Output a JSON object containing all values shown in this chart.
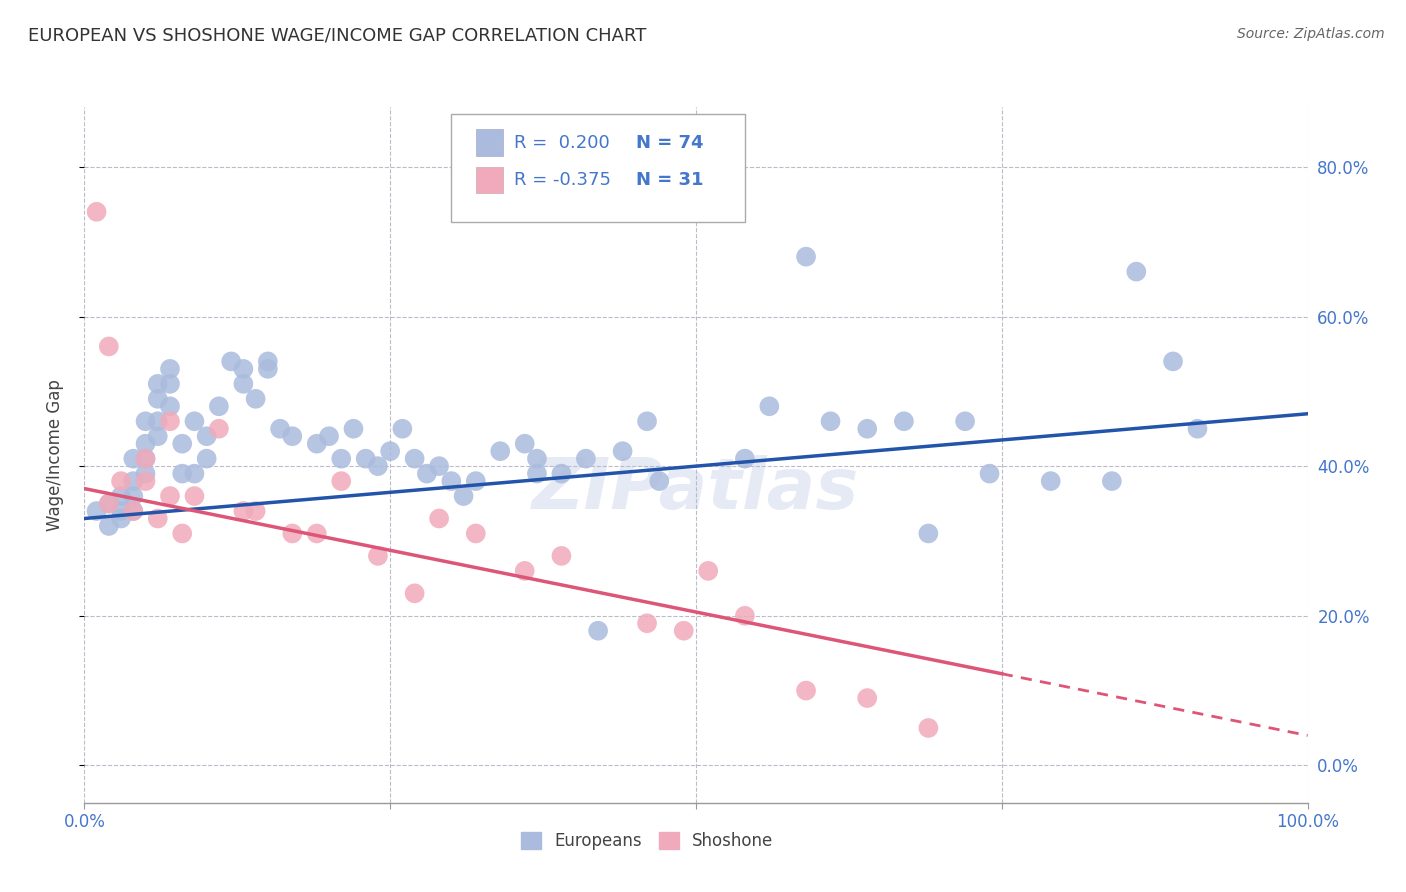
{
  "title": "EUROPEAN VS SHOSHONE WAGE/INCOME GAP CORRELATION CHART",
  "source_text": "Source: ZipAtlas.com",
  "ylabel": "Wage/Income Gap",
  "xlabel": "",
  "xlim": [
    0,
    100
  ],
  "ylim": [
    -5,
    88
  ],
  "background_color": "#ffffff",
  "grid_color": "#bbbbcc",
  "watermark": "ZIPatlas",
  "blue_R": 0.2,
  "blue_N": 74,
  "pink_R": -0.375,
  "pink_N": 31,
  "blue_color": "#aabbdd",
  "pink_color": "#f0aabb",
  "blue_line_color": "#2255aa",
  "pink_line_color": "#dd5577",
  "ytick_values": [
    0,
    20,
    40,
    60,
    80
  ],
  "xtick_values": [
    0,
    25,
    50,
    75,
    100
  ],
  "blue_x": [
    1,
    2,
    2,
    3,
    3,
    3,
    4,
    4,
    4,
    4,
    5,
    5,
    5,
    5,
    6,
    6,
    6,
    6,
    7,
    7,
    7,
    8,
    8,
    9,
    9,
    10,
    10,
    11,
    12,
    13,
    13,
    14,
    15,
    15,
    16,
    17,
    19,
    20,
    21,
    22,
    23,
    24,
    25,
    26,
    27,
    28,
    29,
    30,
    31,
    32,
    34,
    36,
    37,
    37,
    39,
    41,
    42,
    44,
    46,
    47,
    54,
    56,
    59,
    61,
    64,
    67,
    69,
    72,
    74,
    79,
    84,
    86,
    89,
    91
  ],
  "blue_y": [
    34,
    35,
    32,
    36,
    34,
    33,
    41,
    38,
    36,
    34,
    46,
    43,
    41,
    39,
    51,
    49,
    46,
    44,
    53,
    51,
    48,
    43,
    39,
    46,
    39,
    44,
    41,
    48,
    54,
    53,
    51,
    49,
    54,
    53,
    45,
    44,
    43,
    44,
    41,
    45,
    41,
    40,
    42,
    45,
    41,
    39,
    40,
    38,
    36,
    38,
    42,
    43,
    41,
    39,
    39,
    41,
    18,
    42,
    46,
    38,
    41,
    48,
    68,
    46,
    45,
    46,
    31,
    46,
    39,
    38,
    38,
    66,
    54,
    45
  ],
  "pink_x": [
    1,
    2,
    2,
    3,
    4,
    5,
    5,
    6,
    7,
    7,
    8,
    9,
    11,
    13,
    14,
    17,
    19,
    21,
    24,
    27,
    29,
    32,
    36,
    39,
    46,
    49,
    51,
    54,
    59,
    64,
    69
  ],
  "pink_y": [
    74,
    56,
    35,
    38,
    34,
    41,
    38,
    33,
    46,
    36,
    31,
    36,
    45,
    34,
    34,
    31,
    31,
    38,
    28,
    23,
    33,
    31,
    26,
    28,
    19,
    18,
    26,
    20,
    10,
    9,
    5
  ],
  "blue_line_y0": 33,
  "blue_line_y1": 47,
  "pink_line_y0": 37,
  "pink_line_y1": 4,
  "pink_dash_start_x": 75,
  "legend_europeans": "Europeans",
  "legend_shoshone": "Shoshone",
  "legend_text_color": "#4477cc",
  "title_color": "#333333",
  "source_color": "#666666",
  "axis_tick_color": "#4477cc"
}
